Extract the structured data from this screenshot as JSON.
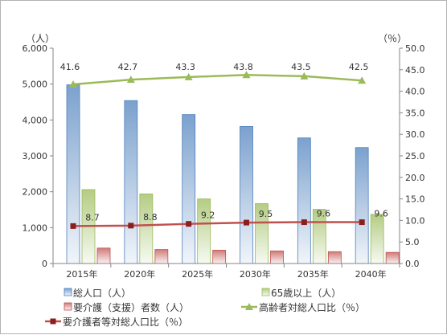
{
  "chart_data": {
    "type": "bar",
    "categories": [
      "2015年",
      "2020年",
      "2025年",
      "2030年",
      "2035年",
      "2040年"
    ],
    "y_left": {
      "unit": "（人）",
      "range": [
        0,
        6000
      ],
      "ticks": [
        "0",
        "1,000",
        "2,000",
        "3,000",
        "4,000",
        "5,000",
        "6,000"
      ]
    },
    "y_right": {
      "unit": "（％）",
      "range": [
        0,
        50
      ],
      "ticks": [
        "0.0",
        "5.0",
        "10.0",
        "15.0",
        "20.0",
        "25.0",
        "30.0",
        "35.0",
        "40.0",
        "45.0",
        "50.0"
      ]
    },
    "series": [
      {
        "name": "総人口（人）",
        "kind": "bar",
        "axis": "left",
        "color": "#4f81bd",
        "values": [
          4980,
          4540,
          4150,
          3820,
          3500,
          3230
        ]
      },
      {
        "name": "65歳以上（人）",
        "kind": "bar",
        "axis": "left",
        "color": "#9bbb59",
        "values": [
          2060,
          1940,
          1800,
          1670,
          1510,
          1370
        ]
      },
      {
        "name": "要介護（支援）者数（人）",
        "kind": "bar",
        "axis": "left",
        "color": "#c0504d",
        "values": [
          430,
          390,
          370,
          350,
          330,
          310
        ]
      },
      {
        "name": "高齢者対総人口比（％）",
        "kind": "line",
        "axis": "right",
        "color": "#9bbb59",
        "marker": "triangle",
        "values": [
          41.6,
          42.7,
          43.3,
          43.8,
          43.5,
          42.5
        ],
        "labels": [
          "41.6",
          "42.7",
          "43.3",
          "43.8",
          "43.5",
          "42.5"
        ]
      },
      {
        "name": "要介護者等対総人口比（％）",
        "kind": "line",
        "axis": "right",
        "color": "#c0504d",
        "marker": "square",
        "values": [
          8.7,
          8.8,
          9.2,
          9.5,
          9.6,
          9.6
        ],
        "labels": [
          "8.7",
          "8.8",
          "9.2",
          "9.5",
          "9.6",
          "9.6"
        ]
      }
    ],
    "grid": false,
    "legend_position": "bottom"
  }
}
